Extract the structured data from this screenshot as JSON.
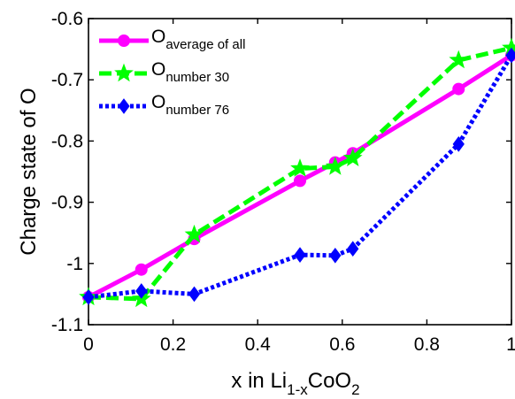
{
  "chart_data": {
    "type": "line",
    "title": "",
    "xlabel": {
      "main": "x in Li",
      "sub": "1-x",
      "tail": "CoO",
      "sub2": "2"
    },
    "ylabel": "Charge state of O",
    "xlim": [
      0,
      1
    ],
    "ylim": [
      -1.1,
      -0.6
    ],
    "xticks": [
      0,
      0.2,
      0.4,
      0.6,
      0.8,
      1
    ],
    "xtick_labels": [
      "0",
      "0.2",
      "0.4",
      "0.6",
      "0.8",
      "1"
    ],
    "yticks": [
      -1.1,
      -1.0,
      -0.9,
      -0.8,
      -0.7,
      -0.6
    ],
    "ytick_labels": [
      "-1.1",
      "-1",
      "-0.9",
      "-0.8",
      "-0.7",
      "-0.6"
    ],
    "grid": false,
    "legend_position": "top-left",
    "series": [
      {
        "name_main": "O",
        "name_sub": "average of all",
        "color": "#ff00ff",
        "dash": "solid",
        "marker": "circle",
        "x": [
          0,
          0.125,
          0.25,
          0.5,
          0.5833,
          0.625,
          0.875,
          1
        ],
        "y": [
          -1.055,
          -1.01,
          -0.96,
          -0.865,
          -0.835,
          -0.82,
          -0.715,
          -0.66
        ]
      },
      {
        "name_main": "O",
        "name_sub": "number 30",
        "color": "#00ff00",
        "dash": "dashed",
        "marker": "star",
        "x": [
          0,
          0.125,
          0.25,
          0.5,
          0.5833,
          0.625,
          0.875,
          1
        ],
        "y": [
          -1.055,
          -1.058,
          -0.953,
          -0.845,
          -0.842,
          -0.828,
          -0.668,
          -0.648
        ]
      },
      {
        "name_main": "O",
        "name_sub": "number 76",
        "color": "#0000ff",
        "dash": "dotted",
        "marker": "diamond",
        "x": [
          0,
          0.125,
          0.25,
          0.5,
          0.5833,
          0.625,
          0.875,
          1
        ],
        "y": [
          -1.055,
          -1.045,
          -1.05,
          -0.986,
          -0.987,
          -0.976,
          -0.805,
          -0.66
        ]
      }
    ]
  }
}
